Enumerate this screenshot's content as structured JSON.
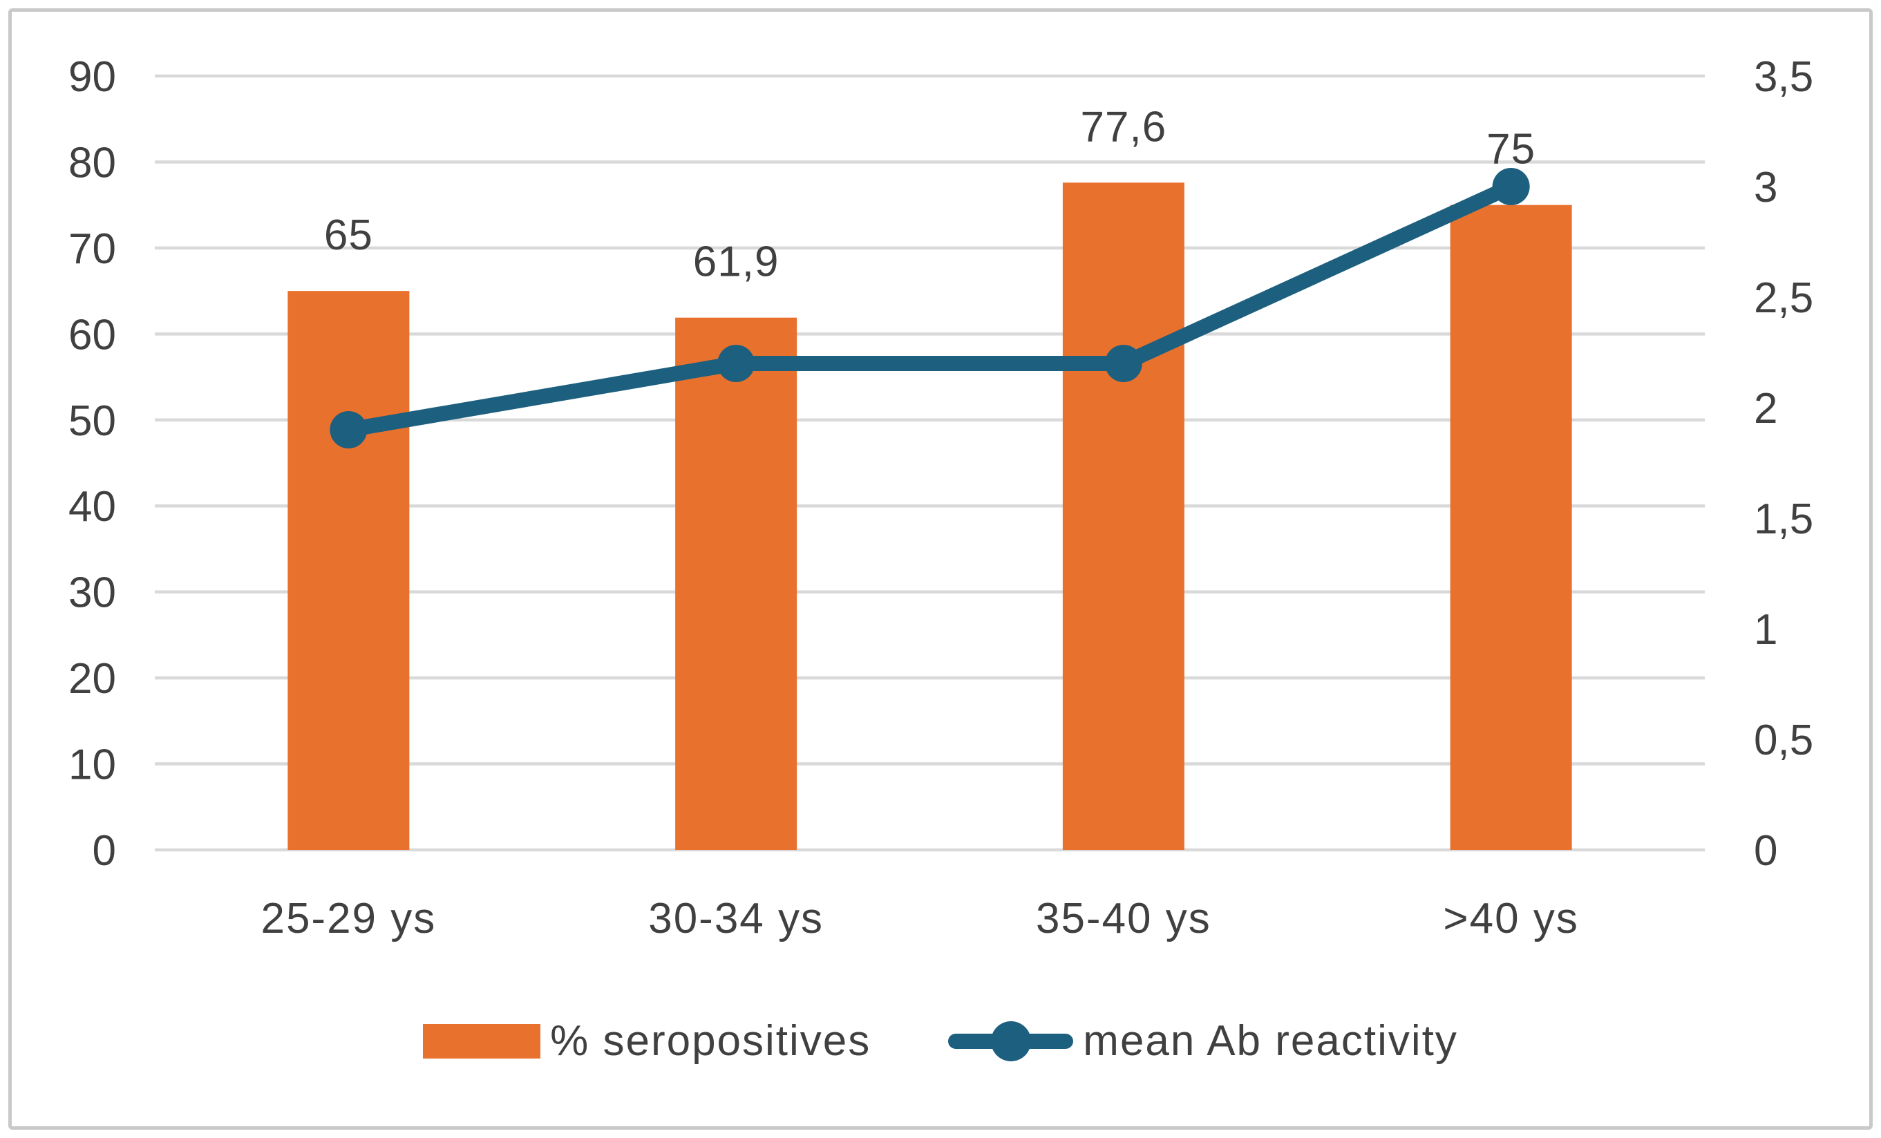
{
  "chart_data": {
    "type": "combo-bar-line",
    "title": "",
    "categories": [
      "25-29 ys",
      "30-34 ys",
      "35-40 ys",
      ">40 ys"
    ],
    "series": [
      {
        "name": "% seropositives",
        "type": "bar",
        "axis": "left",
        "values": [
          65,
          61.9,
          77.6,
          75
        ],
        "data_labels": [
          "65",
          "61,9",
          "77,6",
          "75"
        ],
        "color": "#E8722D"
      },
      {
        "name": "mean Ab reactivity",
        "type": "line",
        "axis": "right",
        "values": [
          1.9,
          2.2,
          2.2,
          3.0
        ],
        "data_labels": [],
        "color": "#1D5F7F"
      }
    ],
    "left_axis": {
      "min": 0,
      "max": 90,
      "step": 10,
      "tick_labels": [
        "0",
        "10",
        "20",
        "30",
        "40",
        "50",
        "60",
        "70",
        "80",
        "90"
      ]
    },
    "right_axis": {
      "min": 0,
      "max": 3.5,
      "step": 0.5,
      "tick_labels": [
        "0",
        "0,5",
        "1",
        "1,5",
        "2",
        "2,5",
        "3",
        "3,5"
      ]
    },
    "grid": true,
    "legend_position": "bottom"
  },
  "styles": {
    "gridline_color": "#D9D9D9",
    "text_color": "#404040",
    "frame_border_color": "#C9C9C9",
    "background_color": "#FFFFFF"
  }
}
